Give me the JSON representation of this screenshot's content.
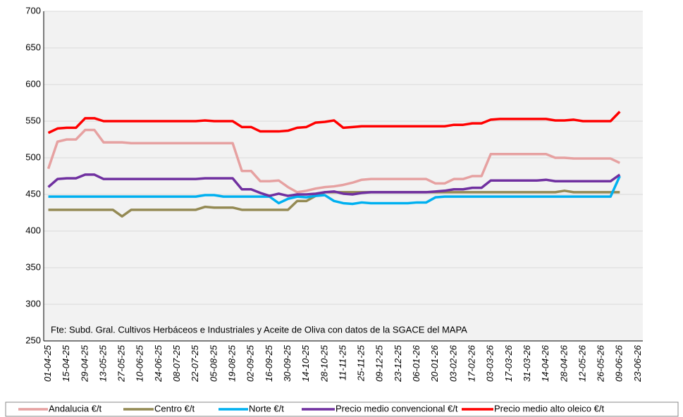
{
  "chart_data": {
    "type": "line",
    "annotation": "Fte: Subd. Gral. Cultivos Herbáceos e Industriales y Aceite de Oliva con datos de la SGACE del MAPA",
    "categories": [
      "01-04-25",
      null,
      "15-04-25",
      null,
      "29-04-25",
      null,
      "13-05-25",
      null,
      "27-05-25",
      null,
      "10-06-25",
      null,
      "24-06-25",
      null,
      "08-07-25",
      null,
      "22-07-25",
      null,
      "05-08-25",
      null,
      "19-08-25",
      null,
      "02-09-25",
      null,
      "16-09-25",
      null,
      "30-09-25",
      null,
      "14-10-25",
      null,
      "28-10-25",
      null,
      "11-11-25",
      null,
      "25-11-25",
      null,
      "09-12-25",
      null,
      "23-12-25",
      null,
      "06-01-26",
      null,
      "20-01-26",
      null,
      "03-02-26",
      null,
      "17-02-26",
      null,
      "03-03-26",
      null,
      "17-03-26",
      null,
      "31-03-26",
      null,
      "14-04-26",
      null,
      "28-04-26",
      null,
      "12-05-26",
      null,
      "26-05-26",
      null,
      "09-06-26",
      null,
      "23-06-26"
    ],
    "series": [
      {
        "name": "Andalucia €/t",
        "color": "#e6a1a1",
        "values": [
          485,
          522,
          525,
          525,
          538,
          538,
          521,
          521,
          521,
          520,
          520,
          520,
          520,
          520,
          520,
          520,
          520,
          520,
          520,
          520,
          520,
          482,
          482,
          468,
          468,
          469,
          460,
          453,
          455,
          458,
          460,
          461,
          463,
          466,
          470,
          471,
          471,
          471,
          471,
          471,
          471,
          471,
          465,
          465,
          471,
          471,
          475,
          475,
          505,
          505,
          505,
          505,
          505,
          505,
          505,
          500,
          500,
          499,
          499,
          499,
          499,
          499,
          493,
          null,
          null
        ]
      },
      {
        "name": "Centro €/t",
        "color": "#948a54",
        "values": [
          429,
          429,
          429,
          429,
          429,
          429,
          429,
          429,
          420,
          429,
          429,
          429,
          429,
          429,
          429,
          429,
          429,
          433,
          432,
          432,
          432,
          429,
          429,
          429,
          429,
          429,
          429,
          441,
          441,
          448,
          453,
          453,
          453,
          453,
          453,
          453,
          453,
          453,
          453,
          453,
          453,
          453,
          453,
          453,
          453,
          453,
          453,
          453,
          453,
          453,
          453,
          453,
          453,
          453,
          453,
          453,
          455,
          453,
          453,
          453,
          453,
          453,
          453,
          null,
          null
        ]
      },
      {
        "name": "Norte €/t",
        "color": "#00b0f0",
        "values": [
          447,
          447,
          447,
          447,
          447,
          447,
          447,
          447,
          447,
          447,
          447,
          447,
          447,
          447,
          447,
          447,
          447,
          449,
          449,
          447,
          447,
          447,
          447,
          447,
          447,
          438,
          444,
          447,
          446,
          448,
          449,
          441,
          438,
          437,
          439,
          438,
          438,
          438,
          438,
          438,
          439,
          439,
          446,
          447,
          447,
          447,
          447,
          447,
          447,
          447,
          447,
          447,
          447,
          447,
          447,
          447,
          447,
          447,
          447,
          447,
          447,
          447,
          475,
          null,
          null
        ]
      },
      {
        "name": "Precio medio convencional €/t",
        "color": "#7030a0",
        "values": [
          460,
          471,
          472,
          472,
          477,
          477,
          471,
          471,
          471,
          471,
          471,
          471,
          471,
          471,
          471,
          471,
          471,
          472,
          472,
          472,
          472,
          457,
          457,
          452,
          448,
          451,
          448,
          450,
          450,
          451,
          453,
          454,
          451,
          450,
          452,
          453,
          453,
          453,
          453,
          453,
          453,
          453,
          454,
          455,
          457,
          457,
          459,
          459,
          469,
          469,
          469,
          469,
          469,
          469,
          470,
          468,
          468,
          468,
          468,
          468,
          468,
          468,
          477,
          null,
          null
        ]
      },
      {
        "name": "Precio medio alto oleico €/t",
        "color": "#ff0000",
        "values": [
          534,
          540,
          541,
          541,
          554,
          554,
          550,
          550,
          550,
          550,
          550,
          550,
          550,
          550,
          550,
          550,
          550,
          551,
          550,
          550,
          550,
          542,
          542,
          536,
          536,
          536,
          537,
          541,
          542,
          548,
          549,
          551,
          541,
          542,
          543,
          543,
          543,
          543,
          543,
          543,
          543,
          543,
          543,
          543,
          545,
          545,
          547,
          547,
          552,
          553,
          553,
          553,
          553,
          553,
          553,
          551,
          551,
          552,
          550,
          550,
          550,
          550,
          563,
          null,
          null
        ]
      }
    ],
    "ylim": [
      250,
      700
    ],
    "yticks": [
      250,
      300,
      350,
      400,
      450,
      500,
      550,
      600,
      650,
      700
    ],
    "grid": true,
    "legend": "bottom"
  }
}
